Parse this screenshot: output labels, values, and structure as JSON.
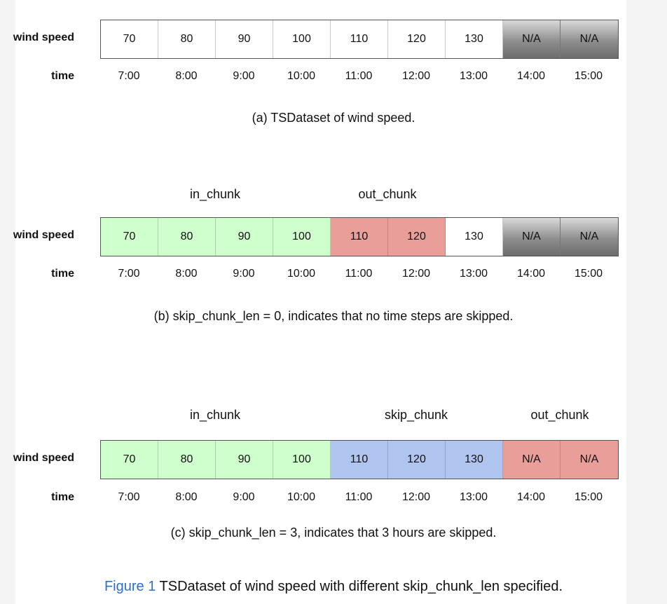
{
  "row_labels": {
    "wind": "wind speed",
    "time": "time"
  },
  "times": [
    "7:00",
    "8:00",
    "9:00",
    "10:00",
    "11:00",
    "12:00",
    "13:00",
    "14:00",
    "15:00"
  ],
  "panels": [
    {
      "id": "a",
      "values": [
        "70",
        "80",
        "90",
        "100",
        "110",
        "120",
        "130",
        "N/A",
        "N/A"
      ],
      "colors": [
        "white",
        "white",
        "white",
        "white",
        "white",
        "white",
        "white",
        "gray",
        "gray"
      ],
      "chunks": [],
      "caption": "(a) TSDataset of wind speed."
    },
    {
      "id": "b",
      "values": [
        "70",
        "80",
        "90",
        "100",
        "110",
        "120",
        "130",
        "N/A",
        "N/A"
      ],
      "colors": [
        "green",
        "green",
        "green",
        "green",
        "red",
        "red",
        "white",
        "gray",
        "gray"
      ],
      "chunks": [
        {
          "label": "in_chunk",
          "start": 0,
          "end": 3
        },
        {
          "label": "out_chunk",
          "start": 4,
          "end": 5
        }
      ],
      "caption": "(b) skip_chunk_len = 0, indicates that no time steps are skipped."
    },
    {
      "id": "c",
      "values": [
        "70",
        "80",
        "90",
        "100",
        "110",
        "120",
        "130",
        "N/A",
        "N/A"
      ],
      "colors": [
        "green",
        "green",
        "green",
        "green",
        "blue",
        "blue",
        "blue",
        "red",
        "red"
      ],
      "chunks": [
        {
          "label": "in_chunk",
          "start": 0,
          "end": 3
        },
        {
          "label": "skip_chunk",
          "start": 4,
          "end": 6
        },
        {
          "label": "out_chunk",
          "start": 7,
          "end": 8
        }
      ],
      "caption": "(c) skip_chunk_len = 3, indicates that 3 hours are skipped."
    }
  ],
  "figure_caption": {
    "number": "Figure 1",
    "text": " TSDataset of wind speed with different skip_chunk_len specified."
  }
}
